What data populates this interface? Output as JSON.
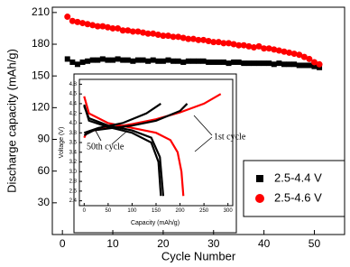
{
  "chart_data": [
    {
      "type": "scatter",
      "x_label": "Cycle Number",
      "y_label": "Discharge capacity (mAh/g)",
      "xlim": [
        -2,
        56
      ],
      "ylim": [
        0,
        215
      ],
      "xticks": [
        0,
        10,
        20,
        30,
        40,
        50
      ],
      "yticks": [
        30,
        60,
        90,
        120,
        150,
        180,
        210
      ],
      "legend": "lower right",
      "series": [
        {
          "name": "2.5-4.4 V",
          "color": "#000000",
          "marker": "square",
          "x": [
            1,
            2,
            3,
            4,
            5,
            6,
            7,
            8,
            9,
            10,
            11,
            12,
            13,
            14,
            15,
            16,
            17,
            18,
            19,
            20,
            21,
            22,
            23,
            24,
            25,
            26,
            27,
            28,
            29,
            30,
            31,
            32,
            33,
            34,
            35,
            36,
            37,
            38,
            39,
            40,
            41,
            42,
            43,
            44,
            45,
            46,
            47,
            48,
            49,
            50,
            51
          ],
          "values": [
            166,
            163,
            161,
            163,
            164,
            165,
            165,
            166,
            165,
            165,
            166,
            165,
            165,
            164,
            165,
            165,
            164,
            165,
            164,
            164,
            165,
            164,
            164,
            163,
            164,
            164,
            164,
            164,
            163,
            163,
            163,
            163,
            162,
            163,
            163,
            162,
            162,
            162,
            162,
            162,
            162,
            161,
            162,
            161,
            161,
            161,
            160,
            160,
            160,
            159,
            158
          ]
        },
        {
          "name": "2.5-4.6 V",
          "color": "#ff0000",
          "marker": "circle",
          "x": [
            1,
            2,
            3,
            4,
            5,
            6,
            7,
            8,
            9,
            10,
            11,
            12,
            13,
            14,
            15,
            16,
            17,
            18,
            19,
            20,
            21,
            22,
            23,
            24,
            25,
            26,
            27,
            28,
            29,
            30,
            31,
            32,
            33,
            34,
            35,
            36,
            37,
            38,
            39,
            40,
            41,
            42,
            43,
            44,
            45,
            46,
            47,
            48,
            49,
            50,
            51
          ],
          "values": [
            206,
            202,
            201,
            200,
            199,
            198,
            197,
            197,
            196,
            195,
            195,
            193,
            193,
            192,
            192,
            191,
            190,
            190,
            189,
            188,
            188,
            187,
            187,
            186,
            185,
            185,
            184,
            184,
            183,
            182,
            182,
            181,
            181,
            180,
            179,
            179,
            178,
            177,
            178,
            176,
            176,
            175,
            174,
            173,
            172,
            171,
            170,
            168,
            166,
            163,
            161
          ]
        }
      ]
    },
    {
      "type": "line",
      "x_label": "Capacity (mAh/g)",
      "y_label": "Voltage (V)",
      "xlim": [
        -10,
        310
      ],
      "ylim": [
        2.3,
        4.9
      ],
      "xticks": [
        0,
        50,
        100,
        150,
        200,
        250,
        300
      ],
      "yticks": [
        2.4,
        2.6,
        2.8,
        {
          "value": 3,
          "label": "3.0"
        },
        3.2,
        3.4,
        3.6,
        3.8,
        {
          "value": 4,
          "label": "4.0"
        },
        4.2,
        4.4,
        4.6,
        4.8
      ],
      "annotations": [
        "1st cycle",
        "50th cycle"
      ],
      "series": [
        {
          "color": "#ff0000",
          "x": [
            0,
            5,
            20,
            50,
            100,
            150,
            200,
            250,
            285
          ],
          "y": [
            3.7,
            3.8,
            3.85,
            3.9,
            3.98,
            4.08,
            4.22,
            4.4,
            4.6
          ]
        },
        {
          "color": "#ff0000",
          "x": [
            0,
            10,
            50,
            100,
            150,
            180,
            195,
            203,
            207
          ],
          "y": [
            4.55,
            4.2,
            4.0,
            3.9,
            3.8,
            3.65,
            3.4,
            3.0,
            2.5
          ]
        },
        {
          "color": "#000000",
          "x": [
            0,
            20,
            60,
            100,
            150,
            200,
            215
          ],
          "y": [
            3.75,
            3.85,
            3.9,
            3.95,
            4.05,
            4.25,
            4.4
          ]
        },
        {
          "color": "#000000",
          "x": [
            0,
            10,
            50,
            100,
            140,
            158,
            165
          ],
          "y": [
            4.35,
            4.1,
            3.95,
            3.85,
            3.7,
            3.3,
            2.5
          ]
        },
        {
          "color": "#000000",
          "x": [
            0,
            30,
            80,
            130,
            160
          ],
          "y": [
            3.8,
            3.9,
            4.0,
            4.2,
            4.4
          ]
        },
        {
          "color": "#000000",
          "x": [
            0,
            10,
            50,
            100,
            140,
            155,
            160
          ],
          "y": [
            4.38,
            4.05,
            3.92,
            3.8,
            3.6,
            3.2,
            2.5
          ]
        }
      ]
    }
  ]
}
